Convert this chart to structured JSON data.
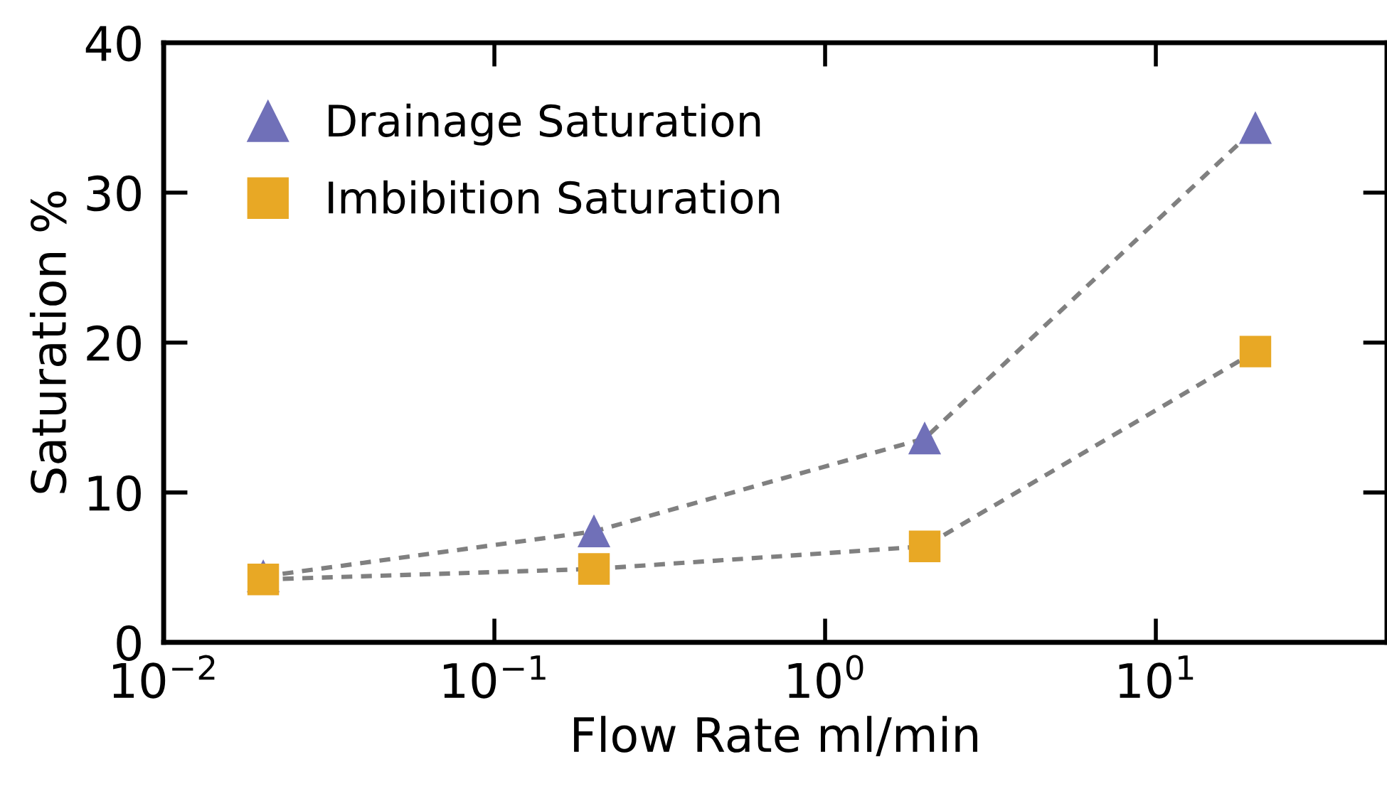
{
  "chart_data": {
    "type": "line",
    "xlabel": "Flow Rate ml/min",
    "ylabel": "Saturation %",
    "log": "x",
    "x": [
      0.02,
      0.2,
      2,
      20
    ],
    "series": [
      {
        "name": "Drainage Saturation",
        "color": "#7070b8",
        "marker": "triangle",
        "values": [
          4.4,
          7.4,
          13.6,
          34.3
        ]
      },
      {
        "name": "Imbibition Saturation",
        "color": "#e8a825",
        "marker": "square",
        "values": [
          4.2,
          4.9,
          6.4,
          19.4
        ]
      }
    ],
    "line_style": "dashed",
    "xlim": [
      0.01,
      50
    ],
    "xticks": [
      {
        "value": 0.01,
        "label": "10$^{−2}$"
      },
      {
        "value": 0.1,
        "label": "10$^{−1}$"
      },
      {
        "value": 1,
        "label": "10$^{0}$"
      },
      {
        "value": 10,
        "label": "10$^{1}$"
      }
    ],
    "ylim": [
      0,
      40
    ],
    "yticks": [
      0,
      10,
      20,
      30,
      40
    ],
    "grid": false,
    "legend": "top left"
  }
}
